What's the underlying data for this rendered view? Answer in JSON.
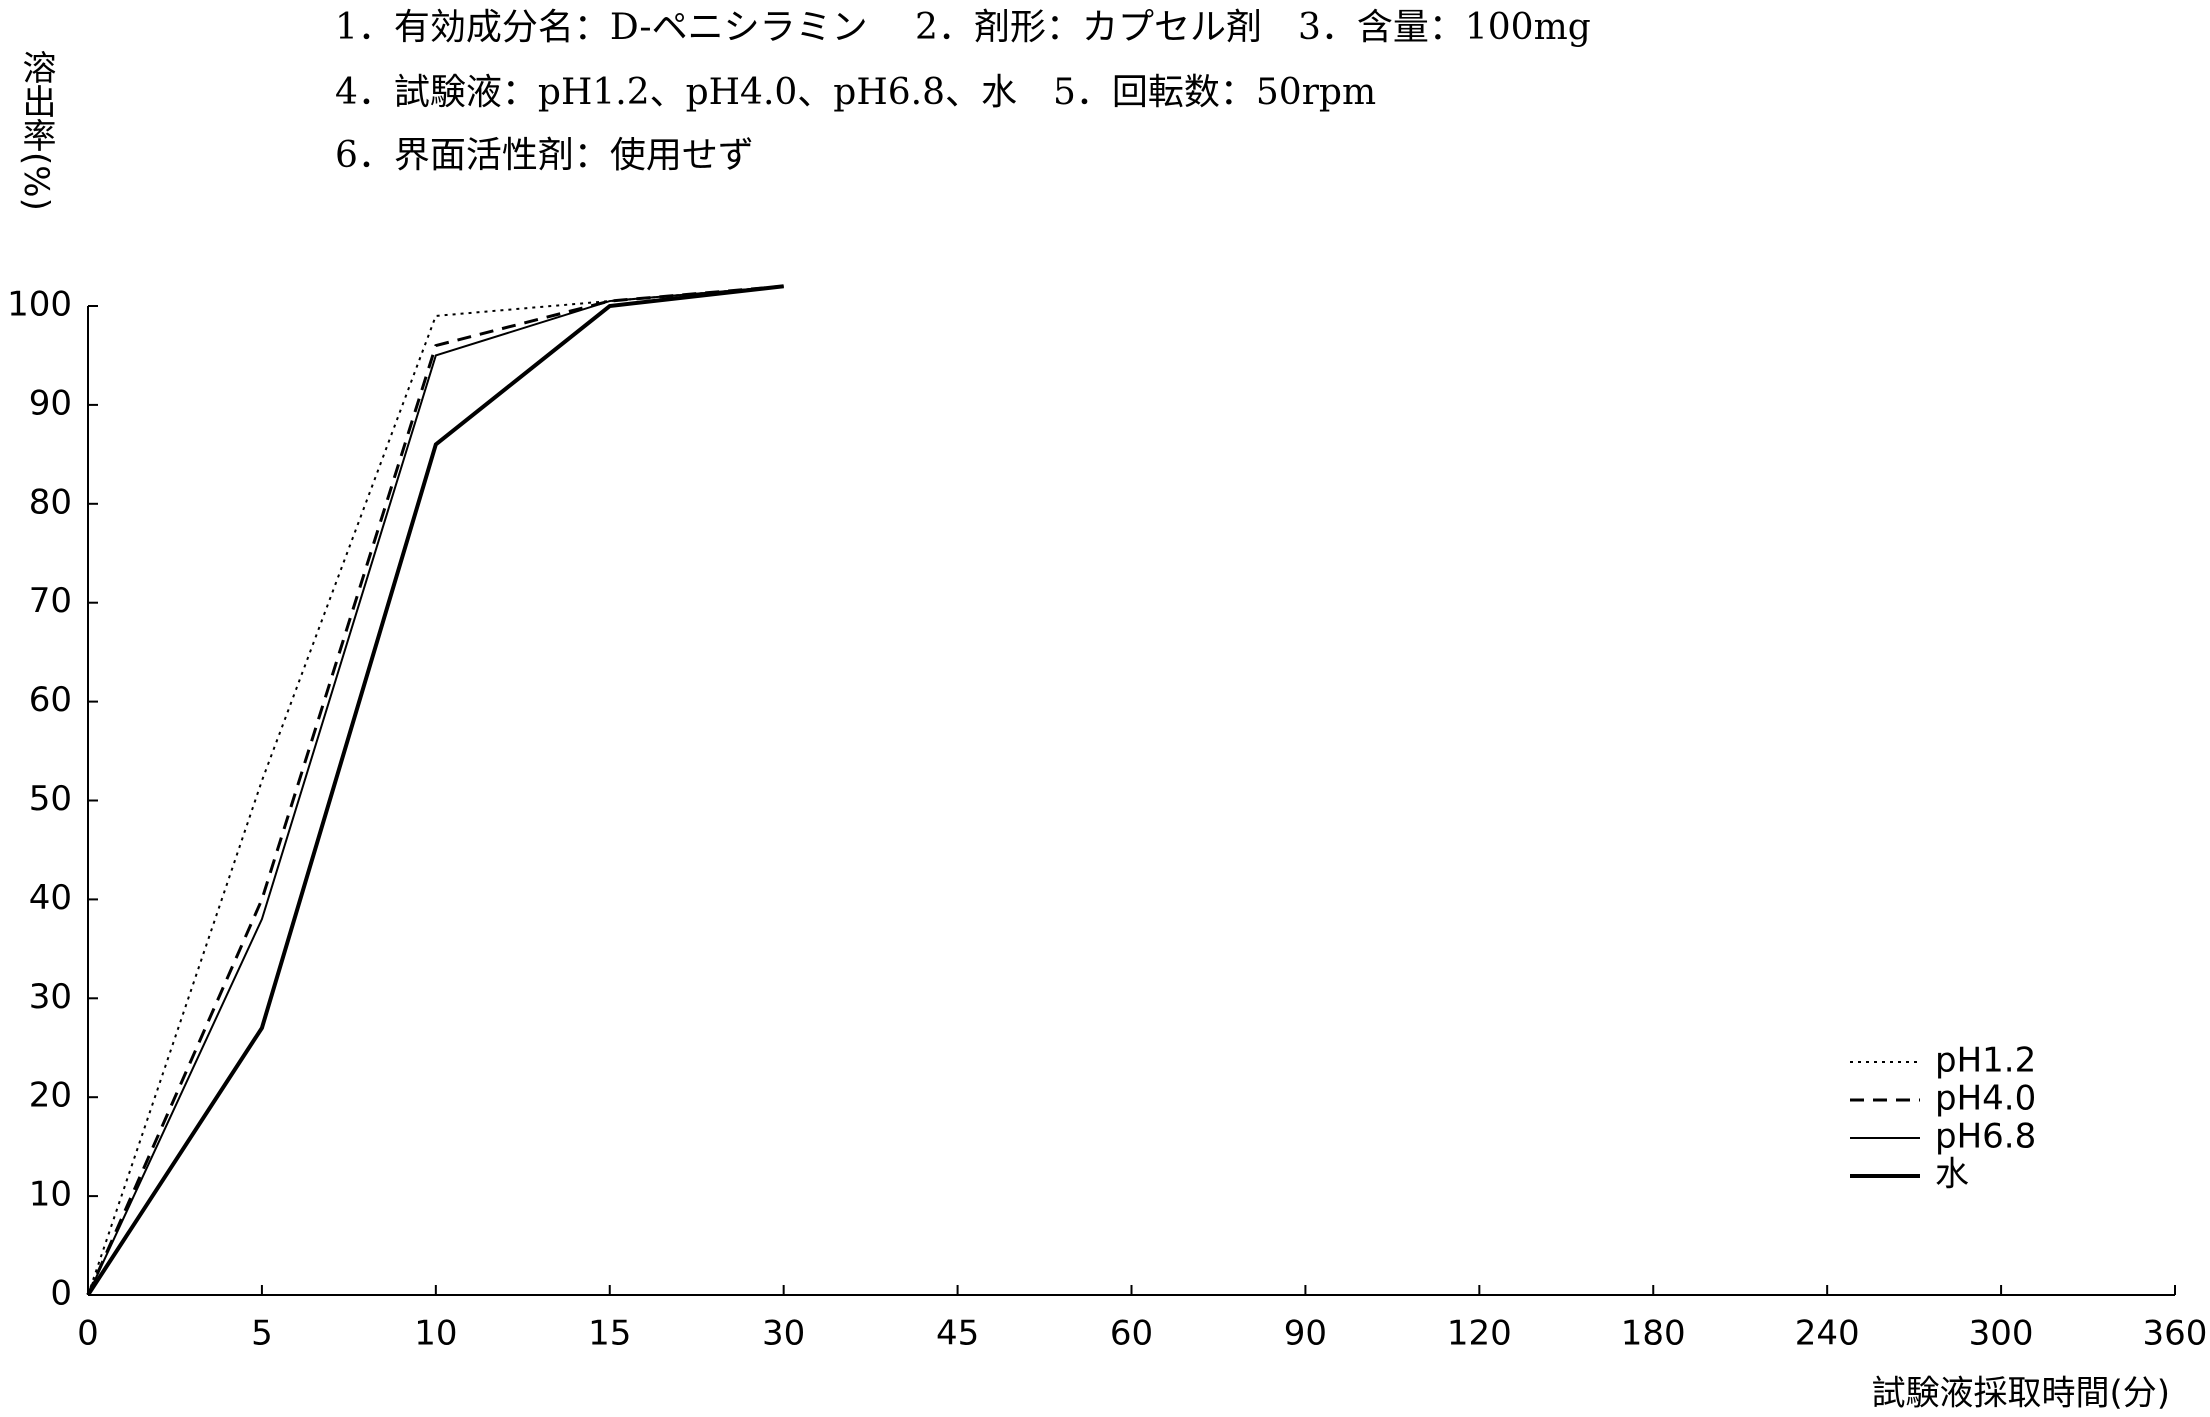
{
  "chart_data": {
    "type": "line",
    "title": [
      "1．有効成分名：D-ペニシラミン　 2．剤形：カプセル剤　3．含量：100mg",
      "4．試験液：pH1.2、pH4.0、pH6.8、水　5．回転数：50rpm",
      "6．界面活性剤：使用せず"
    ],
    "y_label": "溶出率(%)",
    "x_label": "試験液採取時間(分)",
    "categories": [
      "0",
      "5",
      "10",
      "15",
      "30",
      "45",
      "60",
      "90",
      "120",
      "180",
      "240",
      "300",
      "360"
    ],
    "series": [
      {
        "name": "pH1.2",
        "color": "#000000",
        "style": "dotted",
        "values": [
          0,
          52,
          99,
          100.5,
          102,
          null,
          null,
          null,
          null,
          null,
          null,
          null,
          null
        ]
      },
      {
        "name": "pH4.0",
        "color": "#000000",
        "style": "dashed",
        "values": [
          0,
          40,
          96,
          100.5,
          102,
          null,
          null,
          null,
          null,
          null,
          null,
          null,
          null
        ]
      },
      {
        "name": "pH6.8",
        "color": "#000000",
        "style": "thin",
        "values": [
          0,
          38,
          95,
          100.5,
          102,
          null,
          null,
          null,
          null,
          null,
          null,
          null,
          null
        ]
      },
      {
        "name": "水",
        "color": "#000000",
        "style": "thick",
        "values": [
          0,
          27,
          86,
          100,
          102,
          null,
          null,
          null,
          null,
          null,
          null,
          null,
          null
        ]
      }
    ],
    "ylim": [
      0,
      100
    ],
    "yticks": [
      0,
      10,
      20,
      30,
      40,
      50,
      60,
      70,
      80,
      90,
      100
    ],
    "legend": "lower right"
  }
}
